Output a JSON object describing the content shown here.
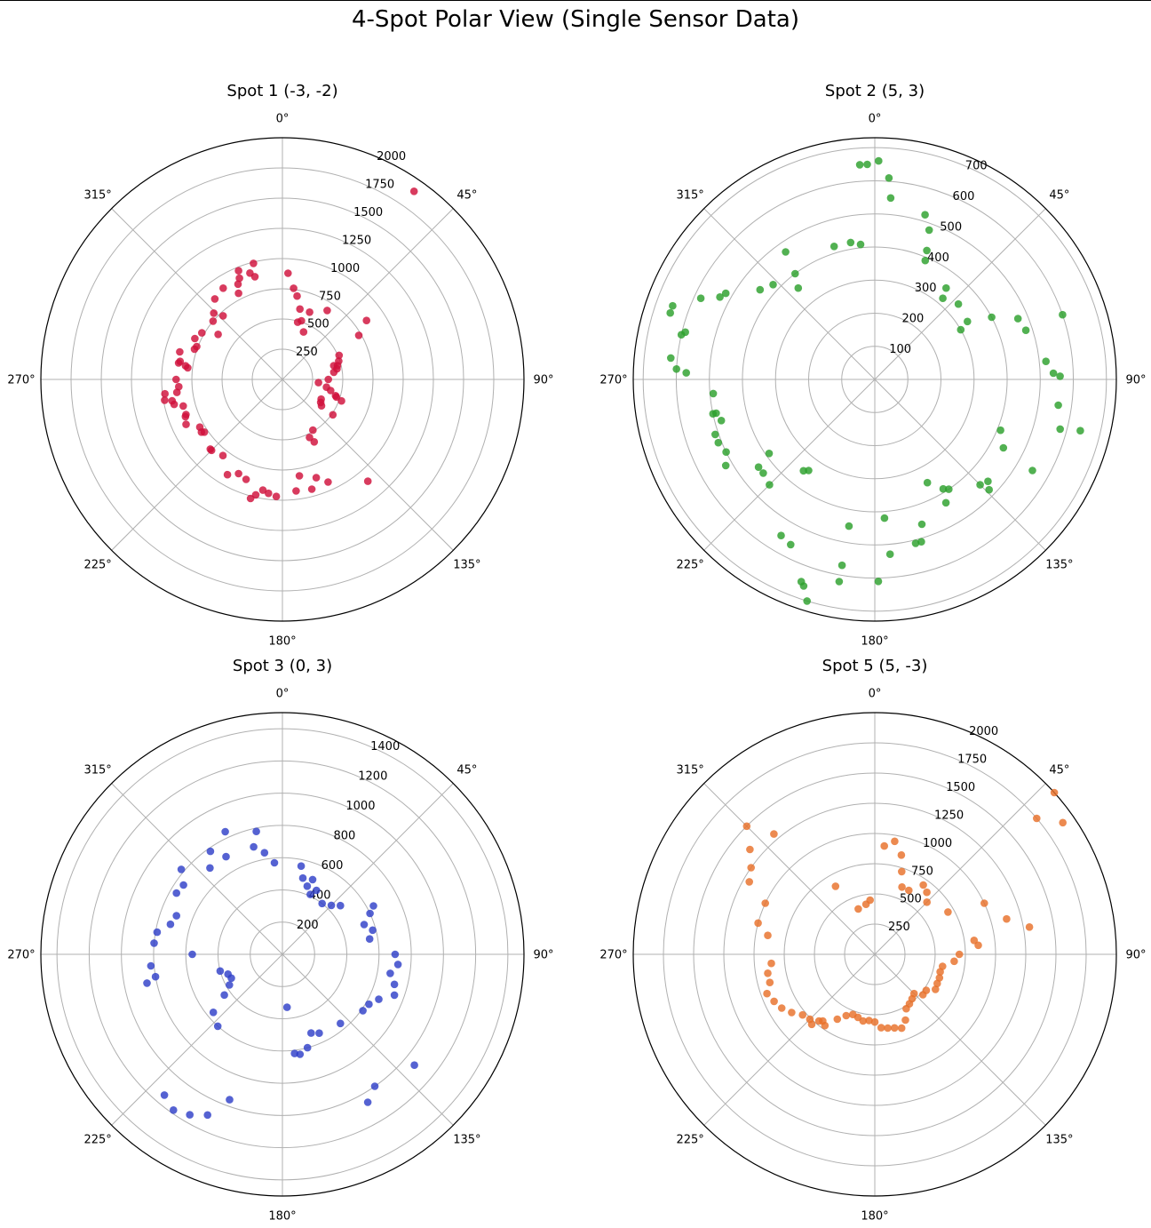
{
  "figure": {
    "title": "4-Spot Polar View (Single Sensor Data)"
  },
  "chart_data": [
    {
      "type": "scatter",
      "subtype": "polar",
      "title": "Spot 1 (-3, -2)",
      "color": "#d0103a",
      "rmax": 2000,
      "r_ticks": [
        250,
        500,
        750,
        1000,
        1250,
        1500,
        1750,
        2000
      ],
      "theta_ticks": [
        "0°",
        "45°",
        "90°",
        "135°",
        "180°",
        "225°",
        "270°",
        "315°"
      ],
      "theta_zero": "top",
      "theta_direction": "clockwise",
      "grid": true,
      "series": [
        {
          "theta_deg": [
            3,
            7,
            10,
            14,
            15,
            18,
            22,
            24,
            33,
            35,
            55,
            60,
            67,
            72,
            75,
            76,
            79,
            82,
            90,
            95,
            100,
            103,
            107,
            108,
            110,
            117,
            121,
            124,
            125,
            140,
            149,
            153,
            155,
            156,
            161,
            165,
            170,
            173,
            183,
            187,
            190,
            193,
            195,
            200,
            205,
            210,
            218,
            225,
            226,
            236,
            237,
            240,
            245,
            249,
            250,
            255,
            257,
            259,
            260,
            263,
            263,
            266,
            270,
            277,
            278,
            279,
            280,
            285,
            289,
            291,
            295,
            300,
            305,
            310,
            314,
            317,
            320,
            327,
            333,
            335,
            337,
            338,
            343,
            345,
            346
          ],
          "r": [
            880,
            760,
            700,
            600,
            490,
            510,
            600,
            430,
            680,
            1900,
            850,
            730,
            510,
            490,
            440,
            470,
            460,
            430,
            380,
            300,
            370,
            410,
            460,
            470,
            520,
            360,
            370,
            390,
            510,
            1100,
            490,
            580,
            530,
            930,
            860,
            940,
            810,
            930,
            970,
            950,
            930,
            980,
            1020,
            880,
            860,
            910,
            800,
            830,
            830,
            780,
            800,
            790,
            880,
            860,
            850,
            850,
            920,
            930,
            990,
            980,
            880,
            860,
            880,
            790,
            810,
            870,
            860,
            880,
            770,
            760,
            800,
            770,
            650,
            750,
            790,
            720,
            870,
            900,
            800,
            870,
            910,
            970,
            920,
            880,
            990
          ]
        }
      ]
    },
    {
      "type": "scatter",
      "subtype": "polar",
      "title": "Spot 2 (5, 3)",
      "color": "#2ca02c",
      "rmax": 730,
      "r_ticks": [
        100,
        200,
        300,
        400,
        500,
        600,
        700
      ],
      "theta_ticks": [
        "0°",
        "45°",
        "90°",
        "135°",
        "180°",
        "225°",
        "270°",
        "315°"
      ],
      "theta_zero": "top",
      "theta_direction": "clockwise",
      "grid": true,
      "series": [
        {
          "theta_deg": [
            1,
            4,
            5,
            17,
            20,
            22,
            23,
            38,
            40,
            48,
            58,
            60,
            62,
            67,
            71,
            72,
            84,
            88,
            89,
            98,
            104,
            105,
            112,
            118,
            120,
            132,
            134,
            135,
            146,
            148,
            150,
            153,
            162,
            164,
            166,
            175,
            176,
            179,
            190,
            190,
            190,
            197,
            199,
            200,
            207,
            211,
            216,
            218,
            225,
            230,
            233,
            235,
            240,
            244,
            248,
            251,
            255,
            258,
            258,
            265,
            272,
            273,
            276,
            283,
            284,
            288,
            290,
            295,
            298,
            300,
            308,
            313,
            320,
            323,
            325,
            343,
            350,
            354,
            356,
            358
          ],
          "r": [
            660,
            610,
            550,
            520,
            480,
            420,
            390,
            350,
            320,
            340,
            330,
            300,
            400,
            470,
            600,
            480,
            520,
            540,
            560,
            560,
            640,
            580,
            410,
            440,
            550,
            460,
            480,
            450,
            400,
            390,
            430,
            350,
            460,
            510,
            510,
            530,
            420,
            610,
            620,
            570,
            450,
            700,
            660,
            650,
            560,
            550,
            340,
            350,
            450,
            440,
            440,
            390,
            520,
            500,
            510,
            510,
            480,
            490,
            500,
            490,
            570,
            600,
            620,
            600,
            590,
            650,
            650,
            580,
            530,
            520,
            440,
            420,
            360,
            400,
            470,
            420,
            420,
            410,
            650,
            650
          ]
        }
      ]
    },
    {
      "type": "scatter",
      "subtype": "polar",
      "title": "Spot 3 (0, 3)",
      "color": "#3040c8",
      "rmax": 1500,
      "r_ticks": [
        200,
        400,
        600,
        800,
        1000,
        1200,
        1400
      ],
      "theta_ticks": [
        "0°",
        "45°",
        "90°",
        "135°",
        "180°",
        "225°",
        "270°",
        "315°"
      ],
      "theta_zero": "top",
      "theta_direction": "clockwise",
      "grid": true,
      "series": [
        {
          "theta_deg": [
            350,
            355,
            12,
            15,
            20,
            22,
            25,
            28,
            38,
            45,
            50,
            62,
            65,
            70,
            75,
            80,
            90,
            95,
            100,
            105,
            110,
            115,
            120,
            125,
            130,
            140,
            145,
            150,
            155,
            160,
            165,
            170,
            173,
            175,
            200,
            205,
            210,
            215,
            220,
            222,
            230,
            235,
            240,
            245,
            250,
            255,
            258,
            260,
            265,
            270,
            275,
            280,
            285,
            290,
            300,
            305,
            310,
            320,
            325,
            330,
            335,
            345,
            348
          ],
          "r": [
            640,
            570,
            560,
            490,
            450,
            500,
            410,
            450,
            400,
            430,
            470,
            640,
            600,
            540,
            580,
            550,
            700,
            720,
            680,
            720,
            740,
            660,
            620,
            610,
            1070,
            560,
            1000,
            1060,
            540,
            520,
            600,
            630,
            620,
            330,
            960,
            1100,
            1150,
            1180,
            1140,
            600,
            560,
            440,
            380,
            350,
            360,
            400,
            860,
            800,
            820,
            560,
            800,
            790,
            720,
            700,
            760,
            750,
            820,
            700,
            780,
            700,
            840,
            690,
            780
          ]
        }
      ]
    },
    {
      "type": "scatter",
      "subtype": "polar",
      "title": "Spot 5 (5, -3)",
      "color": "#e8702a",
      "rmax": 2000,
      "r_ticks": [
        250,
        500,
        750,
        1000,
        1250,
        1500,
        1750,
        2000
      ],
      "theta_ticks": [
        "0°",
        "45°",
        "90°",
        "135°",
        "180°",
        "225°",
        "270°",
        "315°"
      ],
      "theta_zero": "top",
      "theta_direction": "clockwise",
      "grid": true,
      "series": [
        {
          "theta_deg": [
            5,
            10,
            15,
            18,
            22,
            28,
            35,
            40,
            45,
            48,
            50,
            55,
            60,
            65,
            75,
            80,
            82,
            85,
            90,
            95,
            100,
            105,
            110,
            115,
            120,
            125,
            130,
            135,
            140,
            145,
            150,
            155,
            160,
            165,
            170,
            175,
            180,
            185,
            190,
            195,
            200,
            205,
            210,
            215,
            218,
            220,
            222,
            225,
            230,
            235,
            240,
            245,
            250,
            255,
            260,
            265,
            280,
            285,
            295,
            300,
            305,
            310,
            315,
            320,
            330,
            340,
            350,
            355
          ],
          "r": [
            900,
            950,
            850,
            720,
            600,
            600,
            700,
            670,
            610,
            2000,
            1750,
            1900,
            700,
            1000,
            1130,
            1300,
            830,
            860,
            700,
            660,
            570,
            560,
            570,
            570,
            580,
            520,
            520,
            460,
            480,
            500,
            520,
            600,
            650,
            630,
            620,
            610,
            560,
            550,
            560,
            540,
            530,
            560,
            620,
            720,
            700,
            720,
            780,
            760,
            780,
            840,
            890,
            920,
            950,
            900,
            900,
            860,
            900,
            1000,
            1000,
            1200,
            1250,
            1350,
            1500,
            1300,
            650,
            400,
            420,
            450
          ]
        }
      ]
    }
  ]
}
